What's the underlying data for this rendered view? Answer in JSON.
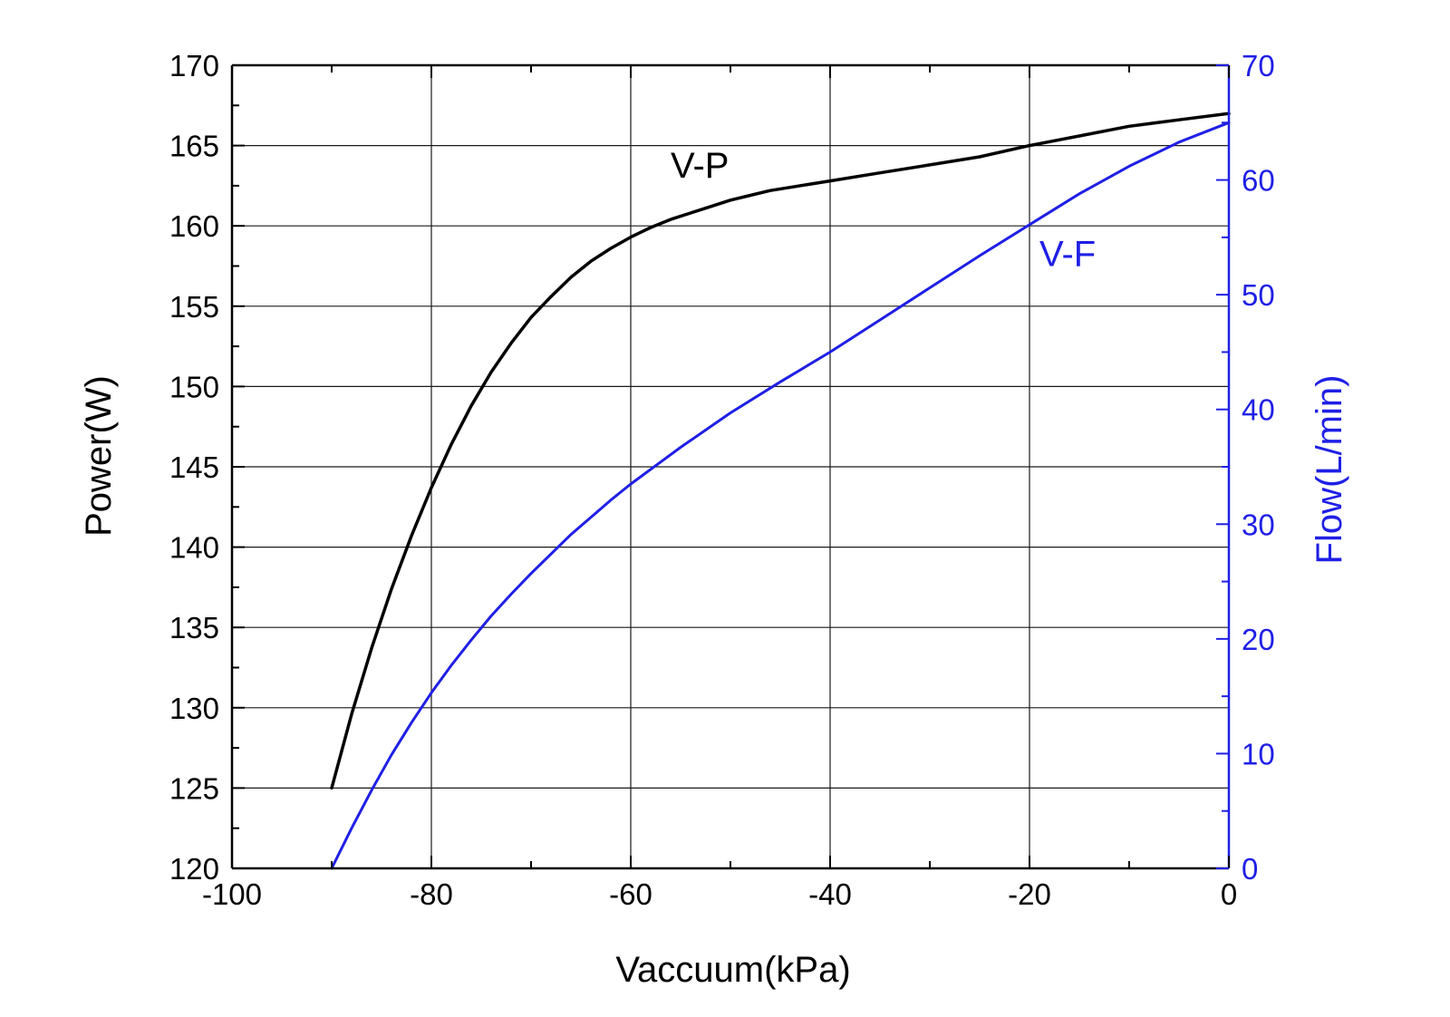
{
  "chart_data": {
    "type": "line",
    "title": "",
    "xlabel": "Vaccuum(kPa)",
    "ylabel": "Power(W)",
    "y2label": "Flow(L/min)",
    "xlim": [
      -100,
      0
    ],
    "ylim": [
      120,
      170
    ],
    "y2lim": [
      0,
      70
    ],
    "xticks": [
      -100,
      -80,
      -60,
      -40,
      -20,
      0
    ],
    "yticks": [
      120,
      125,
      130,
      135,
      140,
      145,
      150,
      155,
      160,
      165,
      170
    ],
    "y2ticks": [
      0,
      10,
      20,
      30,
      40,
      50,
      60,
      70
    ],
    "grid": true,
    "legend": "none",
    "colors": {
      "left_axis": "#000000",
      "right_axis": "#1f1fe6"
    },
    "series": [
      {
        "name": "V-P",
        "axis": "left",
        "color": "#000000",
        "label_at": [
          -56,
          163
        ],
        "x": [
          -90,
          -88,
          -86,
          -84,
          -82,
          -80,
          -78,
          -76,
          -74,
          -72,
          -70,
          -68,
          -66,
          -64,
          -62,
          -60,
          -58,
          -56,
          -54,
          -52,
          -50,
          -48,
          -46,
          -44,
          -42,
          -40,
          -35,
          -30,
          -25,
          -20,
          -15,
          -10,
          -5,
          0
        ],
        "y": [
          125.0,
          129.6,
          133.7,
          137.4,
          140.7,
          143.7,
          146.4,
          148.8,
          150.9,
          152.7,
          154.3,
          155.6,
          156.8,
          157.8,
          158.6,
          159.3,
          159.9,
          160.4,
          160.8,
          161.2,
          161.6,
          161.9,
          162.2,
          162.4,
          162.6,
          162.8,
          163.3,
          163.8,
          164.3,
          165.0,
          165.6,
          166.2,
          166.6,
          167.0
        ]
      },
      {
        "name": "V-F",
        "axis": "right",
        "color": "#1f1fe6",
        "label_at": [
          -19,
          52.5
        ],
        "x": [
          -90,
          -88,
          -86,
          -84,
          -82,
          -80,
          -78,
          -76,
          -74,
          -72,
          -70,
          -68,
          -66,
          -64,
          -62,
          -60,
          -55,
          -50,
          -45,
          -40,
          -35,
          -30,
          -25,
          -20,
          -15,
          -10,
          -5,
          0
        ],
        "y": [
          0.0,
          3.5,
          6.8,
          9.9,
          12.7,
          15.3,
          17.7,
          19.9,
          22.0,
          23.9,
          25.7,
          27.4,
          29.1,
          30.6,
          32.1,
          33.5,
          36.7,
          39.7,
          42.4,
          45.0,
          47.8,
          50.6,
          53.4,
          56.1,
          58.8,
          61.2,
          63.3,
          65.0
        ]
      }
    ]
  }
}
